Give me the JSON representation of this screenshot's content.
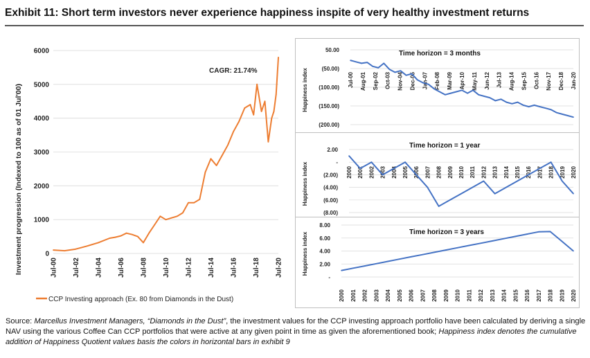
{
  "exhibit_title": "Exhibit 11: Short term investors never experience happiness inspite of very healthy investment returns",
  "source": {
    "prefix": "Source: ",
    "italic_1": "Marcellus Investment Managers, “Diamonds in the Dust”",
    "text_1": ", the investment values for the CCP investing approach portfolio have been calculated by deriving a single NAV using the various Coffee Can CCP portfolios that were active at any given point in time as given the aforementioned book; ",
    "italic_2": "Happiness index denotes the cumulative addition of Happiness Quotient values basis the colors in horizontal bars in exhibit 9"
  },
  "colors": {
    "orange": "#ED7D31",
    "blue": "#4472C4",
    "grid": "#d9d9d9"
  },
  "chart_data": [
    {
      "type": "line",
      "id": "investment",
      "ylabel": "Investment progression (Indexed to 100 as of 01 Jul'00)",
      "ylim": [
        0,
        6000
      ],
      "yticks": [
        "6000",
        "5000",
        "4000",
        "3000",
        "2000",
        "1000",
        "0"
      ],
      "xticks": [
        "Jul-00",
        "Jul-02",
        "Jul-04",
        "Jul-06",
        "Jul-08",
        "Jul-10",
        "Jul-12",
        "Jul-14",
        "Jul-16",
        "Jul-18",
        "Jul-20"
      ],
      "xrange": [
        2000.5,
        2020.5
      ],
      "annotation": "CAGR: 21.74%",
      "legend": "CCP Investing approach (Ex. 80 from Diamonds in the Dust)",
      "series": [
        {
          "name": "CCP Investing approach (Ex. 80 from Diamonds in the Dust)",
          "x": [
            2000.5,
            2001.5,
            2002.5,
            2003.5,
            2004.5,
            2005.5,
            2006.0,
            2006.5,
            2007.0,
            2007.5,
            2008.0,
            2008.5,
            2009.0,
            2009.5,
            2010.0,
            2010.5,
            2011.0,
            2011.5,
            2012.0,
            2012.5,
            2013.0,
            2013.5,
            2014.0,
            2014.5,
            2015.0,
            2015.5,
            2016.0,
            2016.5,
            2017.0,
            2017.5,
            2018.0,
            2018.3,
            2018.6,
            2019.0,
            2019.3,
            2019.6,
            2019.9,
            2020.1,
            2020.3,
            2020.5
          ],
          "y": [
            100,
            80,
            130,
            220,
            320,
            450,
            480,
            520,
            600,
            560,
            500,
            320,
            600,
            850,
            1100,
            1000,
            1050,
            1100,
            1200,
            1500,
            1500,
            1600,
            2400,
            2800,
            2600,
            2900,
            3200,
            3600,
            3900,
            4300,
            4400,
            4100,
            5000,
            4200,
            4500,
            3300,
            4000,
            4200,
            4700,
            5800
          ]
        }
      ]
    },
    {
      "type": "line",
      "id": "happiness_3m",
      "title": "Time horizon = 3 months",
      "ylabel": "Happiness index",
      "ylim": [
        -200,
        50
      ],
      "yticks": [
        "50.00",
        "(50.00)",
        "(100.00)",
        "(150.00)",
        "(200.00)"
      ],
      "xticks": [
        "Jul-00",
        "Aug-01",
        "Sep-02",
        "Oct-03",
        "Nov-04",
        "Dec-05",
        "Jan-07",
        "Feb-08",
        "Mar-09",
        "Apr-10",
        "May-11",
        "Jun-12",
        "Jul-13",
        "Aug-14",
        "Sep-15",
        "Oct-16",
        "Nov-17",
        "Dec-18",
        "Jan-20"
      ],
      "series": [
        {
          "name": "Happiness index",
          "x": [
            2000.5,
            2001.0,
            2001.5,
            2002.0,
            2002.5,
            2003.0,
            2003.5,
            2004.0,
            2004.5,
            2005.0,
            2005.5,
            2006.0,
            2006.5,
            2007.0,
            2007.5,
            2008.0,
            2008.5,
            2009.0,
            2009.5,
            2010.0,
            2010.5,
            2011.0,
            2011.5,
            2012.0,
            2012.5,
            2013.0,
            2013.5,
            2014.0,
            2014.5,
            2015.0,
            2015.5,
            2016.0,
            2016.5,
            2017.0,
            2017.5,
            2018.0,
            2018.5,
            2019.0,
            2019.5,
            2020.0,
            2020.5
          ],
          "y": [
            15,
            10,
            5,
            8,
            -5,
            -10,
            5,
            -15,
            -25,
            -20,
            -35,
            -30,
            -50,
            -60,
            -65,
            -80,
            -90,
            -100,
            -95,
            -90,
            -85,
            -95,
            -85,
            -100,
            -105,
            -110,
            -120,
            -115,
            -125,
            -130,
            -125,
            -135,
            -140,
            -135,
            -140,
            -145,
            -150,
            -160,
            -165,
            -170,
            -175
          ]
        }
      ]
    },
    {
      "type": "line",
      "id": "happiness_1y",
      "title": "Time horizon = 1 year",
      "ylabel": "Happiness index",
      "ylim": [
        -8,
        2
      ],
      "yticks": [
        "2.00",
        "-",
        "(2.00)",
        "(4.00)",
        "(6.00)",
        "(8.00)"
      ],
      "xticks": [
        "2000",
        "2001",
        "2002",
        "2003",
        "2004",
        "2005",
        "2006",
        "2007",
        "2008",
        "2009",
        "2010",
        "2011",
        "2012",
        "2013",
        "2014",
        "2015",
        "2016",
        "2017",
        "2018",
        "2019",
        "2020"
      ],
      "series": [
        {
          "name": "Happiness index",
          "x": [
            2000,
            2001,
            2002,
            2003,
            2004,
            2005,
            2006,
            2007,
            2008,
            2009,
            2010,
            2011,
            2012,
            2013,
            2014,
            2015,
            2016,
            2017,
            2018,
            2019,
            2020
          ],
          "y": [
            1,
            -1,
            0,
            -2,
            -1,
            0,
            -2,
            -4,
            -7,
            -6,
            -5,
            -4,
            -3,
            -5,
            -4,
            -3,
            -2,
            -1,
            0,
            -3,
            -5
          ]
        }
      ]
    },
    {
      "type": "line",
      "id": "happiness_3y",
      "title": "Time horizon = 3 years",
      "ylabel": "Happiness index",
      "ylim": [
        0,
        8
      ],
      "yticks": [
        "8.00",
        "6.00",
        "4.00",
        "2.00",
        "-"
      ],
      "xticks": [
        "2000",
        "2001",
        "2002",
        "2003",
        "2004",
        "2005",
        "2006",
        "2007",
        "2008",
        "2009",
        "2010",
        "2011",
        "2012",
        "2013",
        "2014",
        "2015",
        "2016",
        "2017",
        "2018",
        "2019",
        "2020"
      ],
      "series": [
        {
          "name": "Happiness index",
          "x": [
            2000,
            2001,
            2002,
            2003,
            2004,
            2005,
            2006,
            2007,
            2008,
            2009,
            2010,
            2011,
            2012,
            2013,
            2014,
            2015,
            2016,
            2017,
            2018,
            2019,
            2020
          ],
          "y": [
            1,
            1.35,
            1.7,
            2.05,
            2.4,
            2.75,
            3.1,
            3.45,
            3.8,
            4.15,
            4.5,
            4.85,
            5.2,
            5.55,
            5.9,
            6.25,
            6.6,
            6.95,
            7,
            5.5,
            4
          ]
        }
      ]
    }
  ]
}
